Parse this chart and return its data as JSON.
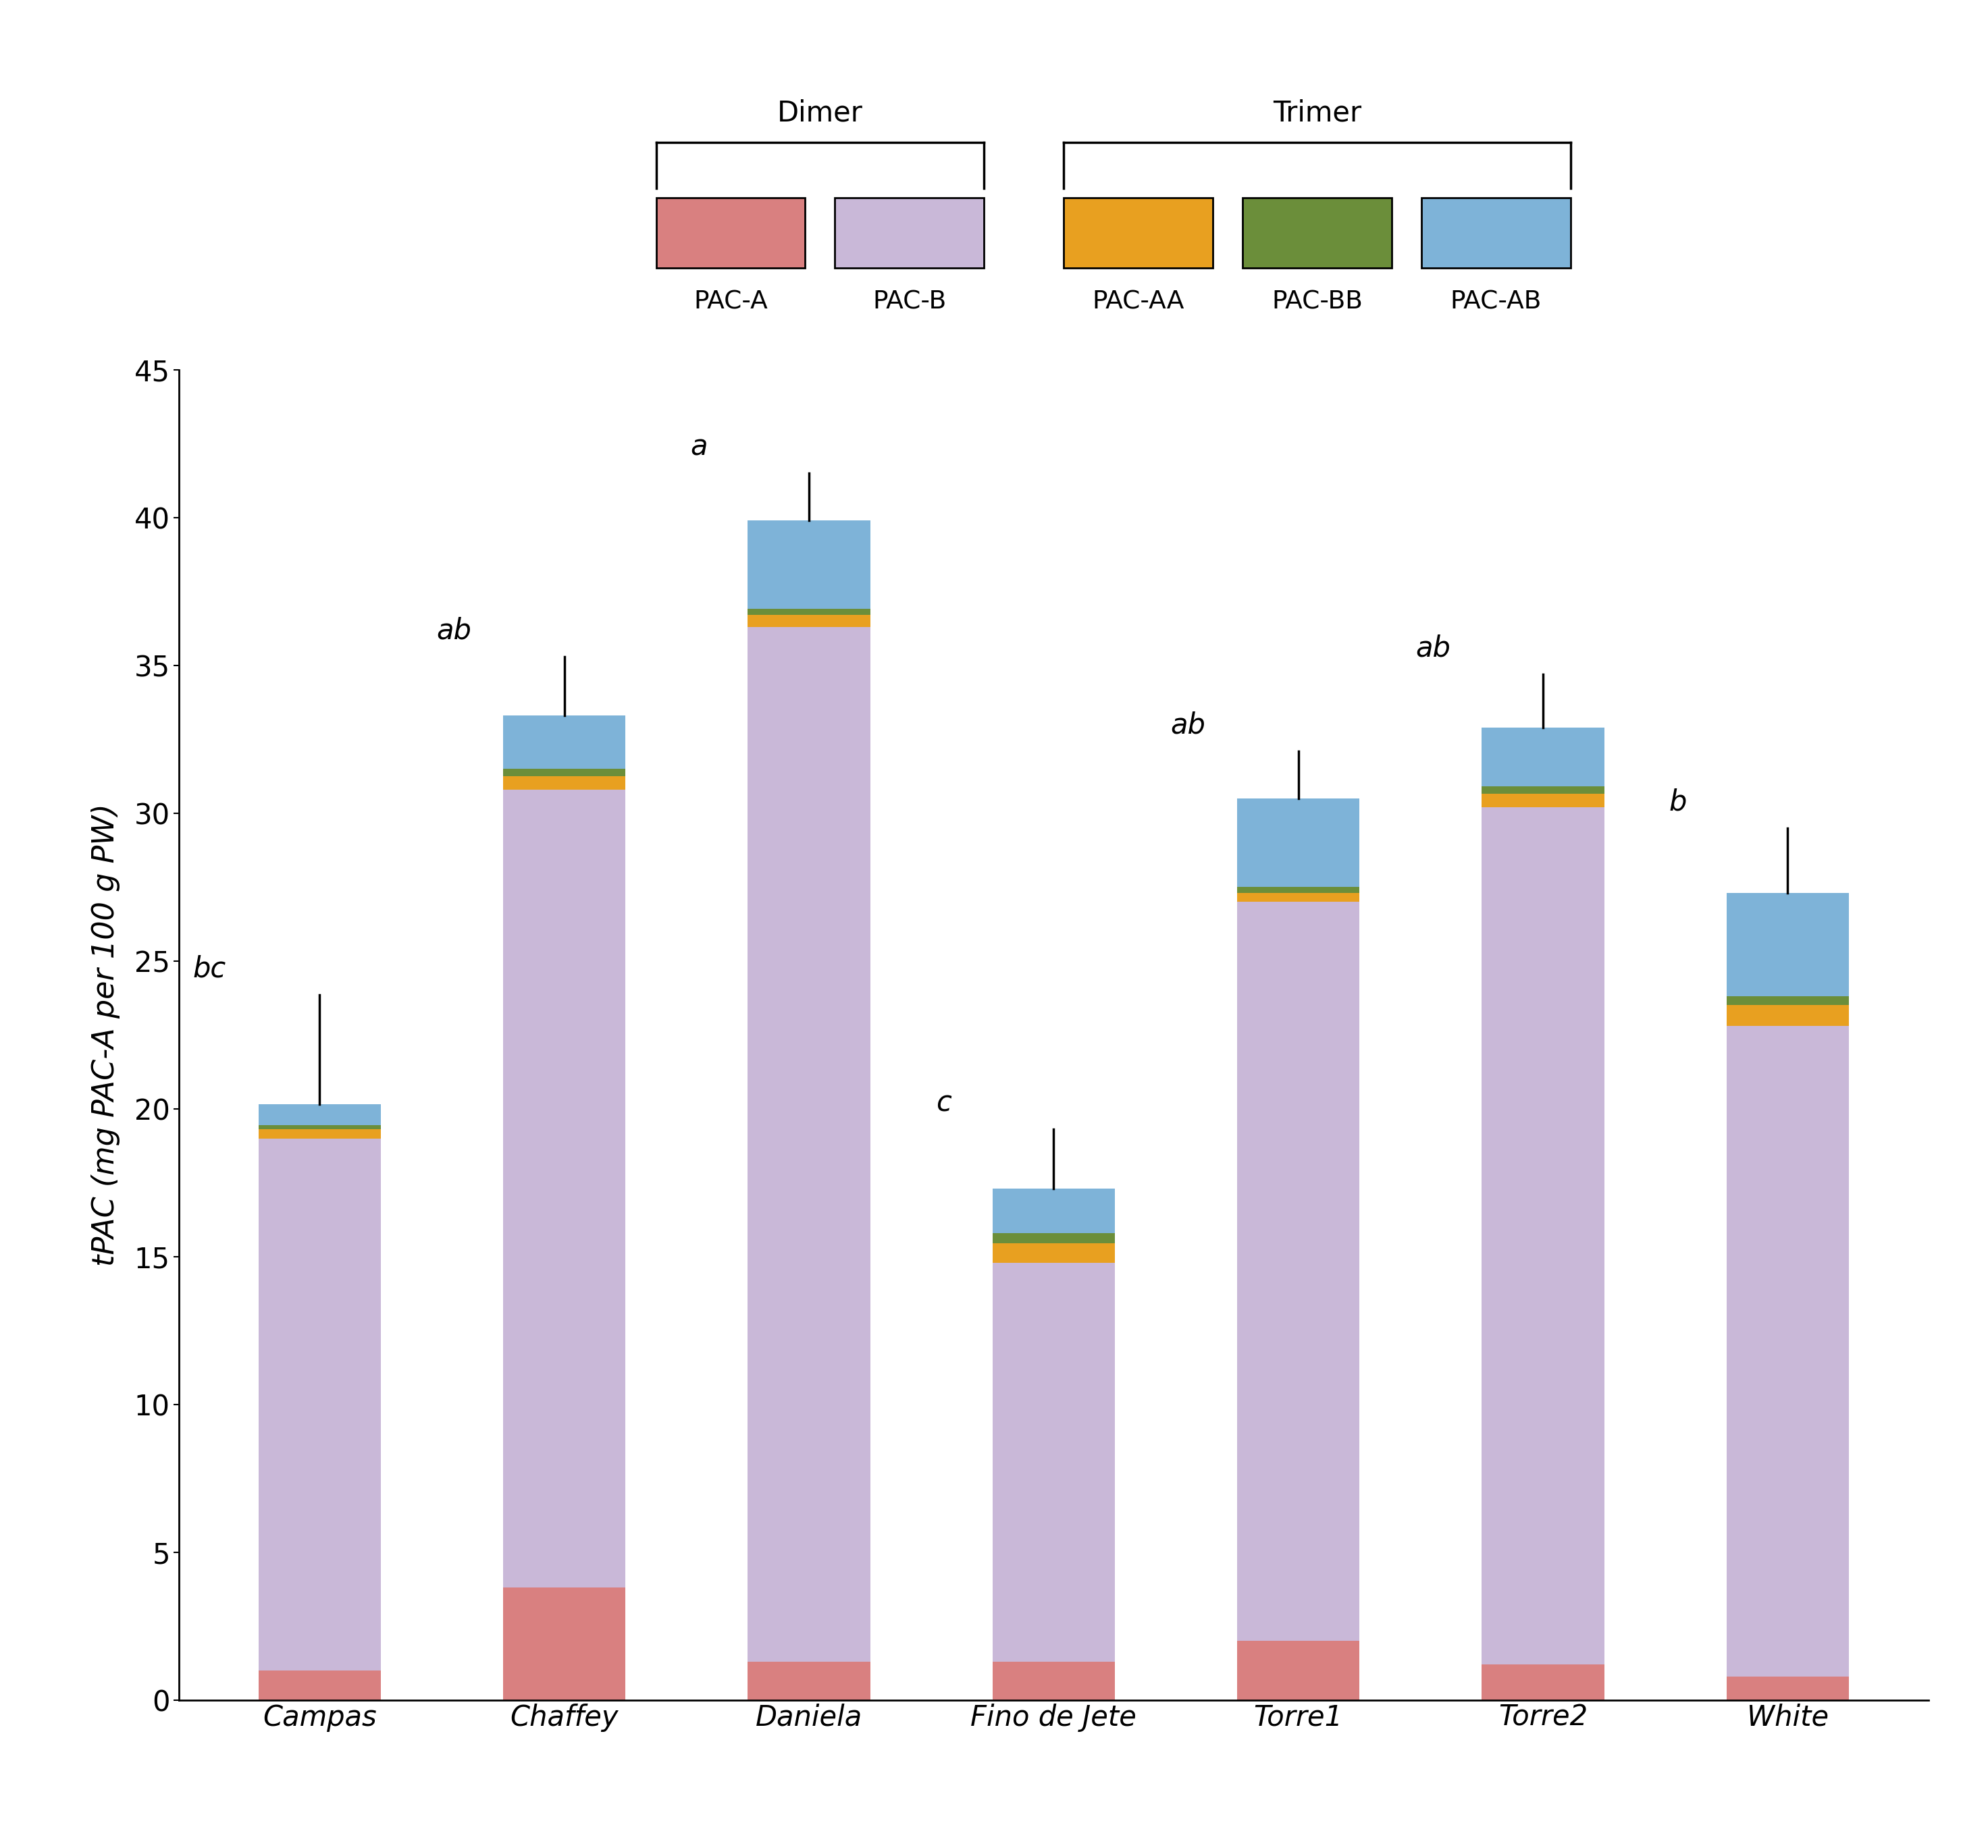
{
  "categories": [
    "Campas",
    "Chaffey",
    "Daniela",
    "Fino de Jete",
    "Torre1",
    "Torre2",
    "White"
  ],
  "pac_a": [
    1.0,
    3.8,
    1.3,
    1.3,
    2.0,
    1.2,
    0.8
  ],
  "pac_b": [
    18.0,
    27.0,
    35.0,
    13.5,
    25.0,
    29.0,
    22.0
  ],
  "pac_aa": [
    0.3,
    0.45,
    0.4,
    0.65,
    0.3,
    0.45,
    0.7
  ],
  "pac_bb": [
    0.15,
    0.25,
    0.2,
    0.35,
    0.2,
    0.25,
    0.3
  ],
  "pac_ab": [
    0.7,
    1.8,
    3.0,
    1.5,
    3.0,
    2.0,
    3.5
  ],
  "error_bars": [
    3.7,
    2.0,
    1.6,
    2.0,
    1.6,
    1.8,
    2.2
  ],
  "sig_labels": [
    "bc",
    "ab",
    "a",
    "c",
    "ab",
    "ab",
    "b"
  ],
  "colors": {
    "pac_a": "#d98080",
    "pac_b": "#c9b8d8",
    "pac_aa": "#e8a020",
    "pac_bb": "#6b8e3a",
    "pac_ab": "#7eb3d8"
  },
  "ylabel": "tPAC (mg PAC-A per 100 g PW)",
  "ylim": [
    0,
    45
  ],
  "yticks": [
    0,
    5,
    10,
    15,
    20,
    25,
    30,
    35,
    40,
    45
  ],
  "legend_labels": [
    "PAC-A",
    "PAC-B",
    "PAC-AA",
    "PAC-BB",
    "PAC-AB"
  ],
  "background_color": "#ffffff",
  "bar_width": 0.5
}
